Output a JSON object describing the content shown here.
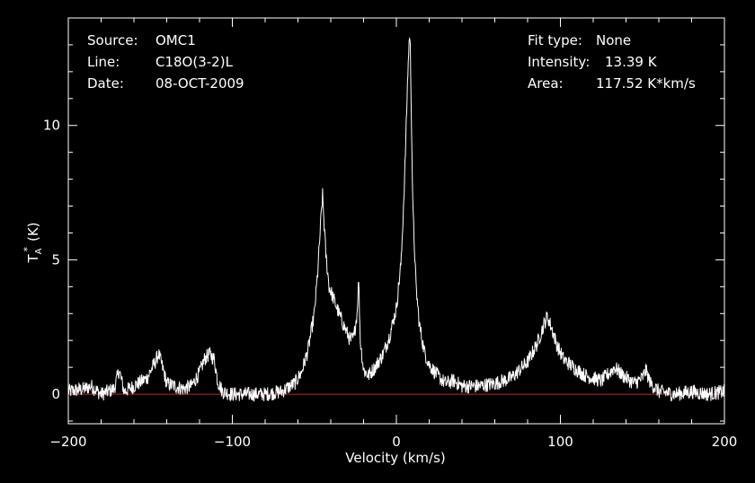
{
  "header": {
    "source_label": "Source:",
    "source_value": "OMC1",
    "line_label": "Line:",
    "line_value": "C18O(3-2)L",
    "date_label": "Date:",
    "date_value": "08-OCT-2009",
    "fit_type_label": "Fit type:",
    "fit_type_value": "None",
    "intensity_label": "Intensity:",
    "intensity_value": "13.39 K",
    "area_label": "Area:",
    "area_value": "117.52 K*km/s"
  },
  "colors": {
    "background": "#000000",
    "foreground": "#ffffff",
    "baseline": "#cc2020"
  },
  "chart_data": {
    "type": "line",
    "title": "",
    "xlabel": "Velocity (km/s)",
    "ylabel_main": "T",
    "ylabel_sub": "A",
    "ylabel_sup": "*",
    "ylabel_unit": "(K)",
    "xlim": [
      -200,
      200
    ],
    "ylim": [
      -1.1,
      14
    ],
    "x_ticks": [
      -200,
      -100,
      0,
      100,
      200
    ],
    "x_tick_labels": [
      "−200",
      "−100",
      "0",
      "100",
      "200"
    ],
    "y_ticks": [
      0,
      5,
      10
    ],
    "y_tick_labels": [
      "0",
      "5",
      "10"
    ],
    "baseline_value": 0,
    "grid": false,
    "series": [
      {
        "values_x": [
          -200,
          -190,
          -186,
          -180,
          -172,
          -169,
          -166,
          -160,
          -152,
          -147,
          -145,
          -143,
          -140,
          -135,
          -130,
          -125,
          -120,
          -117,
          -114,
          -111,
          -109,
          -106,
          -100,
          -90,
          -80,
          -70,
          -62,
          -58,
          -54,
          -50,
          -48,
          -46,
          -45,
          -43,
          -41,
          -38,
          -35,
          -31,
          -28,
          -26,
          -24,
          -23,
          -22,
          -20,
          -17,
          -13,
          -8,
          -4,
          0,
          3,
          5,
          7,
          8,
          8.5,
          9,
          10,
          12,
          14,
          17,
          20,
          25,
          30,
          35,
          40,
          50,
          60,
          70,
          80,
          86,
          90,
          92,
          95,
          98,
          102,
          108,
          115,
          125,
          130,
          133,
          138,
          145,
          150,
          152,
          155,
          160,
          170,
          180,
          190,
          200
        ],
        "values_y": [
          0.1,
          0.2,
          0.3,
          0.0,
          0.2,
          0.9,
          0.1,
          0.3,
          0.6,
          1.2,
          1.5,
          1.1,
          0.4,
          0.3,
          0.2,
          0.3,
          0.8,
          1.3,
          1.5,
          1.3,
          0.5,
          0.1,
          0.0,
          0.0,
          0.0,
          0.1,
          0.4,
          0.8,
          1.6,
          3.0,
          4.5,
          6.5,
          7.4,
          5.2,
          4.0,
          3.5,
          3.0,
          2.4,
          2.0,
          2.1,
          3.0,
          4.3,
          2.0,
          0.9,
          0.7,
          1.0,
          1.5,
          2.2,
          3.2,
          5.0,
          8.0,
          12.0,
          13.4,
          12.8,
          11.0,
          7.0,
          4.0,
          2.6,
          1.6,
          1.1,
          0.7,
          0.4,
          0.5,
          0.3,
          0.3,
          0.4,
          0.6,
          1.2,
          1.9,
          2.6,
          2.9,
          2.4,
          1.8,
          1.3,
          1.0,
          0.7,
          0.5,
          0.8,
          1.0,
          0.7,
          0.4,
          0.6,
          0.9,
          0.4,
          0.1,
          0.0,
          0.1,
          0.0,
          0.1
        ]
      }
    ]
  }
}
